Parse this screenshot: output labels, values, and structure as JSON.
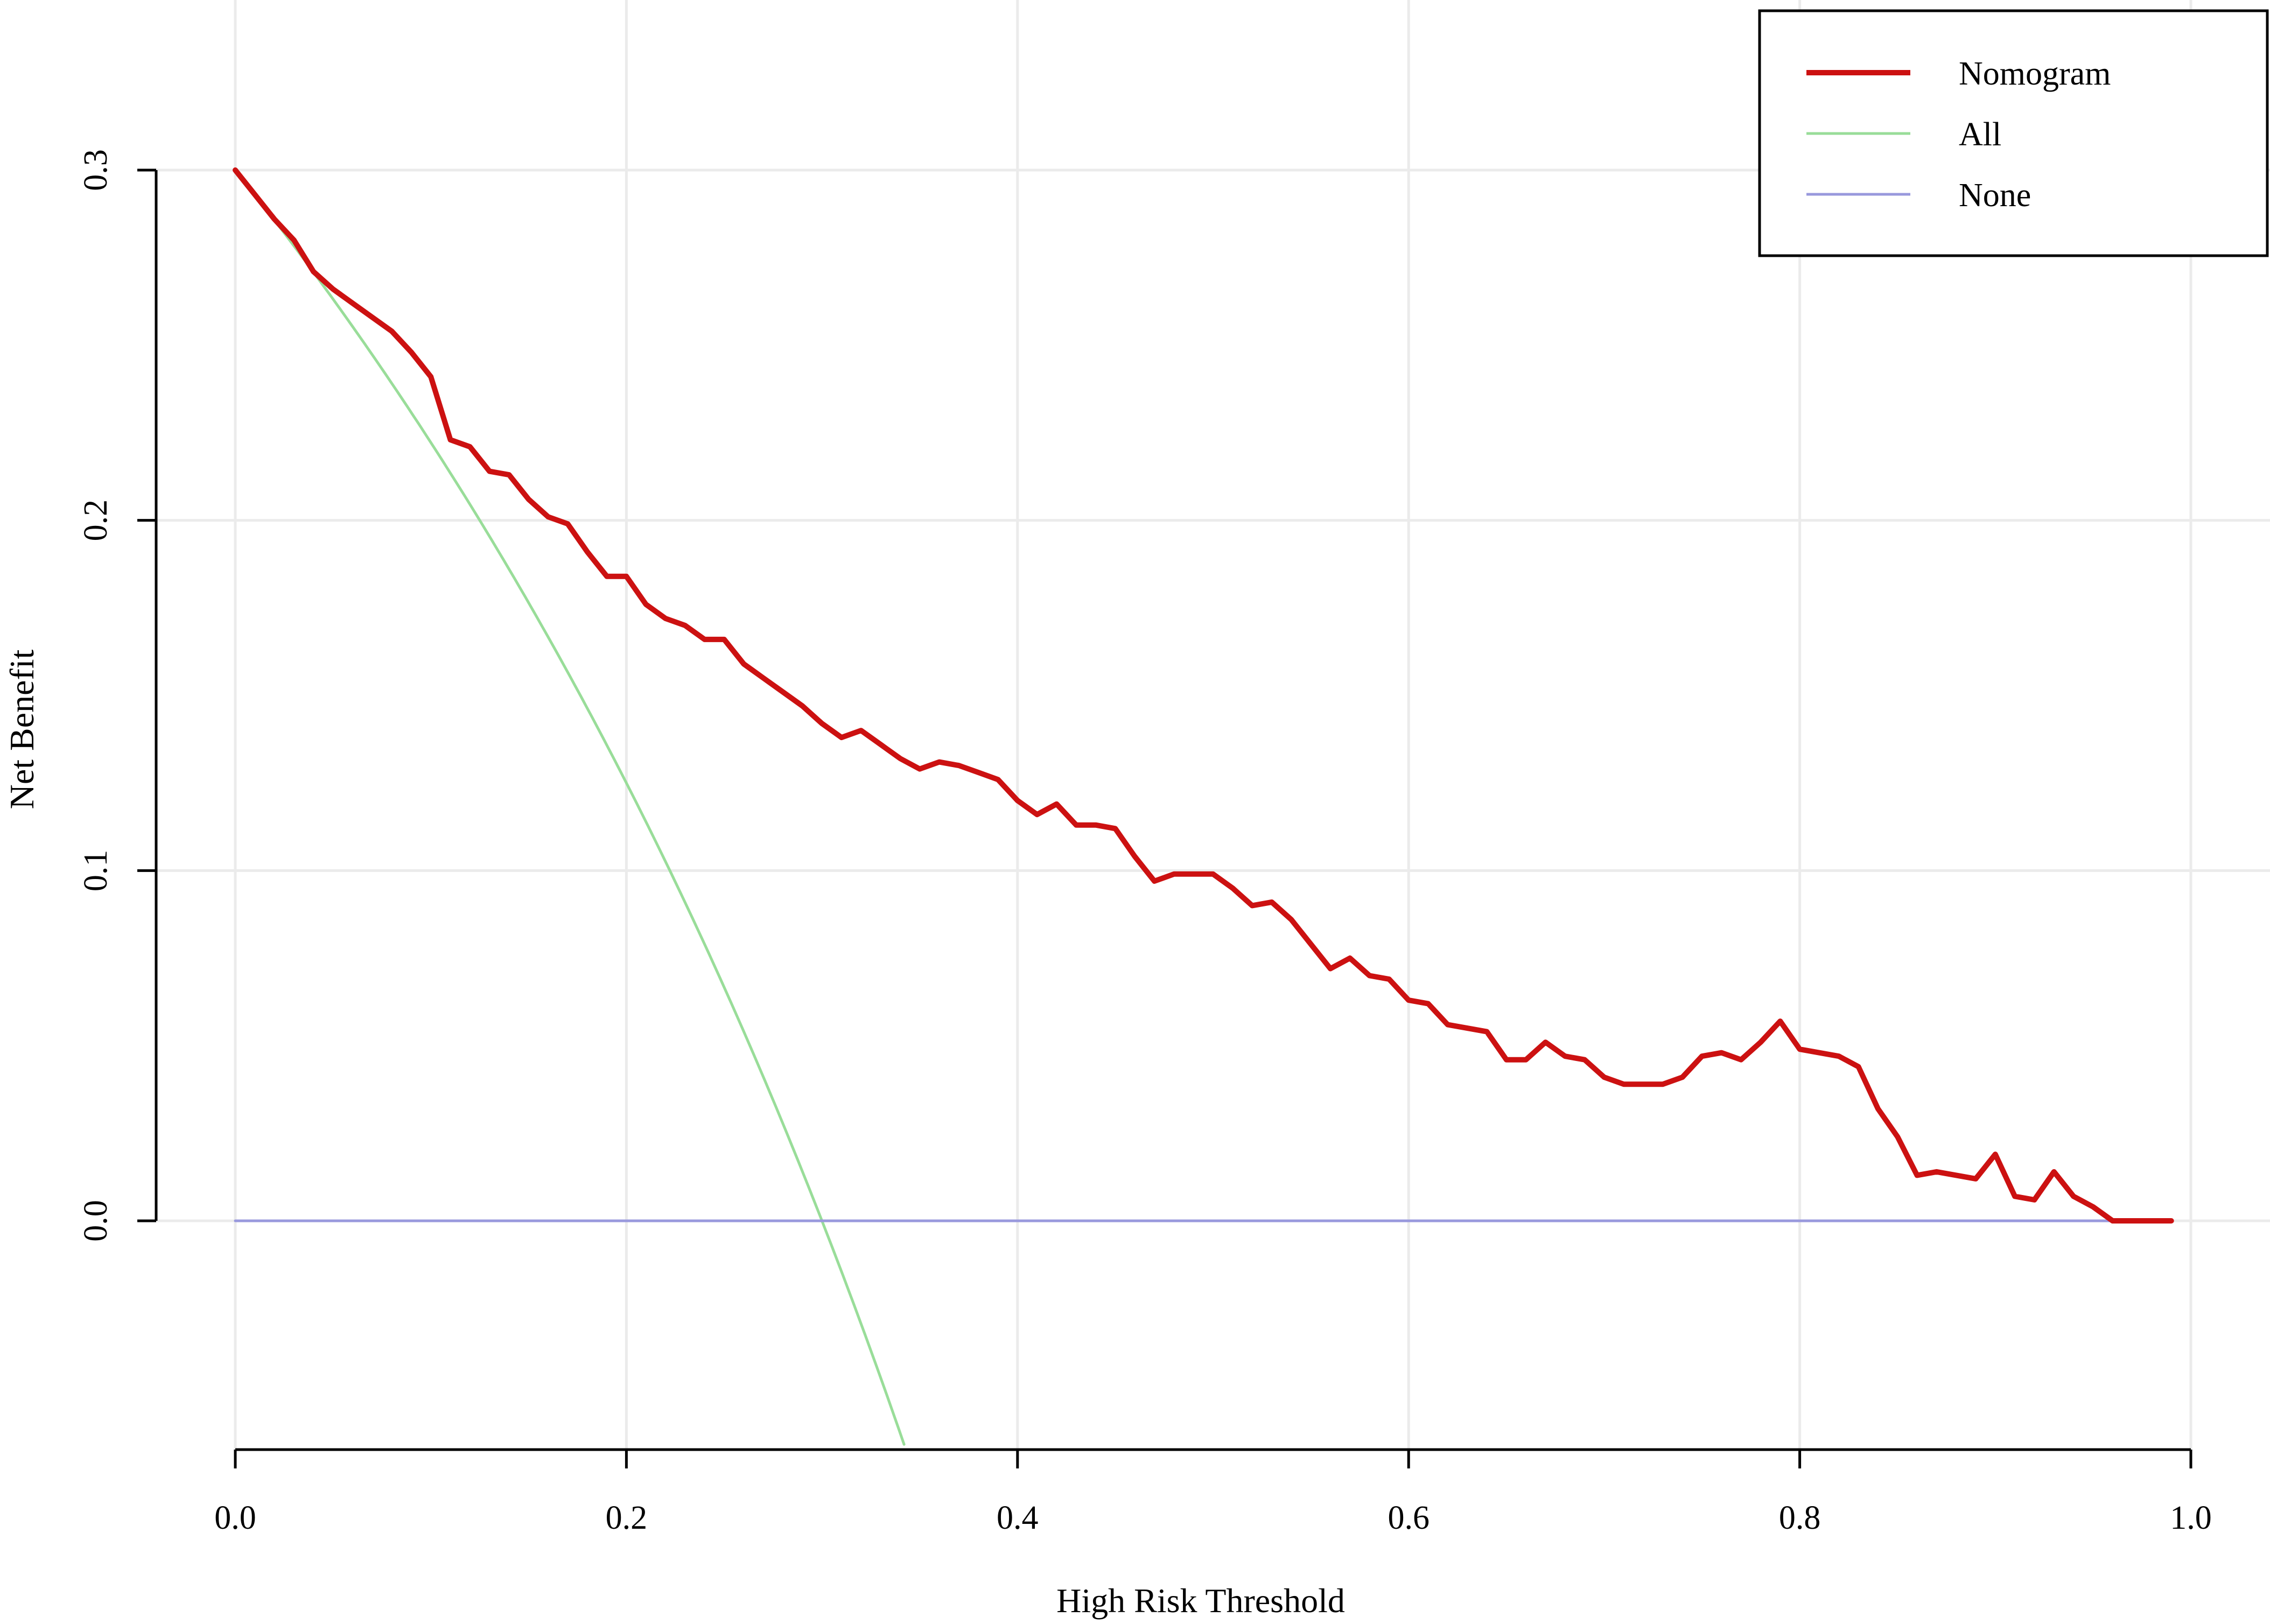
{
  "chart_data": {
    "type": "line",
    "title": "",
    "xlabel": "High Risk Threshold",
    "ylabel": "Net Benefit",
    "xlim": [
      0,
      1
    ],
    "ylim": [
      -0.065,
      0.345
    ],
    "xticks": [
      0.0,
      0.2,
      0.4,
      0.6,
      0.8,
      1.0
    ],
    "xtick_labels": [
      "0.0",
      "0.2",
      "0.4",
      "0.6",
      "0.8",
      "1.0"
    ],
    "yticks": [
      0.0,
      0.1,
      0.2,
      0.3
    ],
    "ytick_labels": [
      "0.0",
      "0.1",
      "0.2",
      "0.3"
    ],
    "grid": true,
    "legend_position": "top-right",
    "series": [
      {
        "name": "Nomogram",
        "color": "#cc1111",
        "x": [
          0.0,
          0.01,
          0.02,
          0.03,
          0.04,
          0.05,
          0.06,
          0.07,
          0.08,
          0.09,
          0.1,
          0.11,
          0.12,
          0.13,
          0.14,
          0.15,
          0.16,
          0.17,
          0.18,
          0.19,
          0.2,
          0.21,
          0.22,
          0.23,
          0.24,
          0.25,
          0.26,
          0.27,
          0.28,
          0.29,
          0.3,
          0.31,
          0.32,
          0.33,
          0.34,
          0.35,
          0.36,
          0.37,
          0.38,
          0.39,
          0.4,
          0.41,
          0.42,
          0.43,
          0.44,
          0.45,
          0.46,
          0.47,
          0.48,
          0.49,
          0.5,
          0.51,
          0.52,
          0.53,
          0.54,
          0.55,
          0.56,
          0.57,
          0.58,
          0.59,
          0.6,
          0.61,
          0.62,
          0.63,
          0.64,
          0.65,
          0.66,
          0.67,
          0.68,
          0.69,
          0.7,
          0.71,
          0.72,
          0.73,
          0.74,
          0.75,
          0.76,
          0.77,
          0.78,
          0.79,
          0.8,
          0.81,
          0.82,
          0.83,
          0.84,
          0.85,
          0.86,
          0.87,
          0.88,
          0.89,
          0.9,
          0.91,
          0.92,
          0.93,
          0.94,
          0.95,
          0.96,
          0.97,
          0.98,
          0.99
        ],
        "y": [
          0.3,
          0.293,
          0.286,
          0.28,
          0.271,
          0.266,
          0.262,
          0.258,
          0.254,
          0.248,
          0.241,
          0.223,
          0.221,
          0.214,
          0.213,
          0.206,
          0.201,
          0.199,
          0.191,
          0.184,
          0.184,
          0.176,
          0.172,
          0.17,
          0.166,
          0.166,
          0.159,
          0.155,
          0.151,
          0.147,
          0.142,
          0.138,
          0.14,
          0.136,
          0.132,
          0.129,
          0.131,
          0.13,
          0.128,
          0.126,
          0.12,
          0.116,
          0.119,
          0.113,
          0.113,
          0.112,
          0.104,
          0.097,
          0.099,
          0.099,
          0.099,
          0.095,
          0.09,
          0.091,
          0.086,
          0.079,
          0.072,
          0.075,
          0.07,
          0.069,
          0.063,
          0.062,
          0.056,
          0.055,
          0.054,
          0.046,
          0.046,
          0.051,
          0.047,
          0.046,
          0.041,
          0.039,
          0.039,
          0.039,
          0.041,
          0.047,
          0.048,
          0.046,
          0.051,
          0.057,
          0.049,
          0.048,
          0.047,
          0.044,
          0.032,
          0.024,
          0.013,
          0.014,
          0.013,
          0.012,
          0.019,
          0.007,
          0.006,
          0.014,
          0.007,
          0.004,
          0.0,
          0.0,
          0.0,
          0.0
        ]
      },
      {
        "name": "All",
        "color": "#99dd99",
        "prevalence": 0.3,
        "x_range": [
          0.0,
          0.342
        ]
      },
      {
        "name": "None",
        "color": "#9999dd",
        "x": [
          0.0,
          0.99
        ],
        "y": [
          0.0,
          0.0
        ]
      }
    ]
  }
}
